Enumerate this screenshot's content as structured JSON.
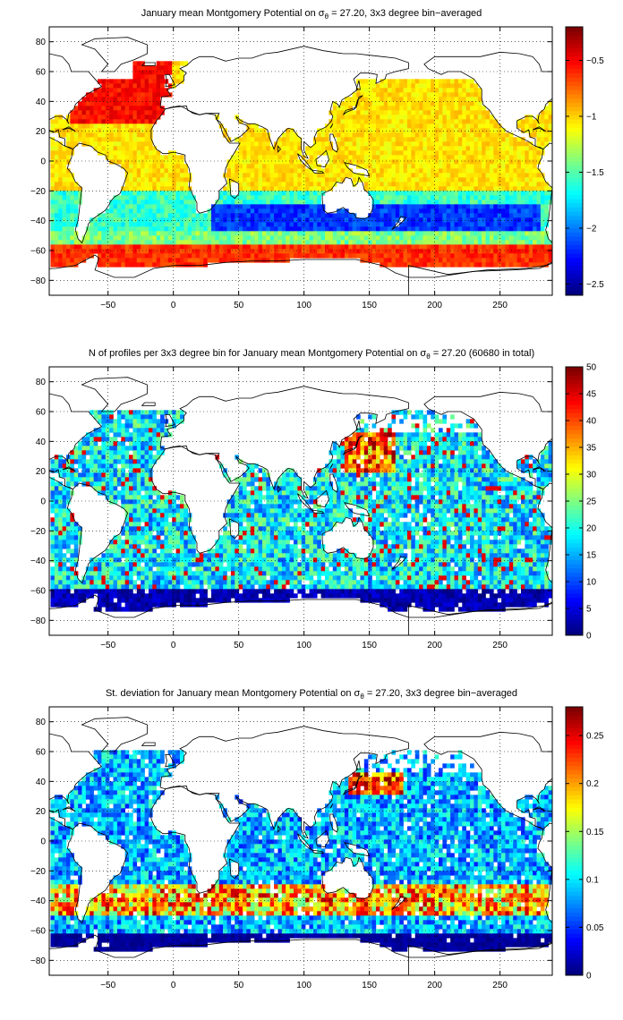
{
  "chart_data": [
    {
      "type": "heatmap",
      "title_main": "January mean Montgomery Potential on σ",
      "title_sub": "θ",
      "title_rest": " = 27.20, 3x3 degree bin−averaged",
      "xlim": [
        -95,
        290
      ],
      "ylim": [
        -90,
        90
      ],
      "xticks": [
        -50,
        0,
        50,
        100,
        150,
        200,
        250
      ],
      "yticks": [
        80,
        60,
        40,
        20,
        0,
        -20,
        -40,
        -60,
        -80
      ],
      "colorbar": {
        "range": [
          -2.6,
          -0.2
        ],
        "ticks": [
          -0.5,
          -1,
          -1.5,
          -2,
          -2.5
        ],
        "colormap": "jet"
      },
      "field": "montgomery",
      "grid": true
    },
    {
      "type": "heatmap",
      "title_main": "N of profiles per 3x3 degree bin for January mean Montgomery Potential on σ",
      "title_sub": "θ",
      "title_rest": " = 27.20 (60680 in total)",
      "xlim": [
        -95,
        290
      ],
      "ylim": [
        -90,
        90
      ],
      "xticks": [
        -50,
        0,
        50,
        100,
        150,
        200,
        250
      ],
      "yticks": [
        80,
        60,
        40,
        20,
        0,
        -20,
        -40,
        -60,
        -80
      ],
      "colorbar": {
        "range": [
          0,
          50
        ],
        "ticks": [
          50,
          45,
          40,
          35,
          30,
          25,
          20,
          15,
          10,
          5,
          0
        ],
        "colormap": "jet"
      },
      "field": "count",
      "grid": true
    },
    {
      "type": "heatmap",
      "title_main": "St. deviation for January mean Montgomery Potential on σ",
      "title_sub": "θ",
      "title_rest": " = 27.20, 3x3 degree bin−averaged",
      "xlim": [
        -95,
        290
      ],
      "ylim": [
        -90,
        90
      ],
      "xticks": [
        -50,
        0,
        50,
        100,
        150,
        200,
        250
      ],
      "yticks": [
        80,
        60,
        40,
        20,
        0,
        -20,
        -40,
        -60,
        -80
      ],
      "colorbar": {
        "range": [
          0,
          0.28
        ],
        "ticks": [
          0.25,
          0.2,
          0.15,
          0.1,
          0.05,
          0
        ],
        "colormap": "jet"
      },
      "field": "stdev",
      "grid": true
    }
  ]
}
